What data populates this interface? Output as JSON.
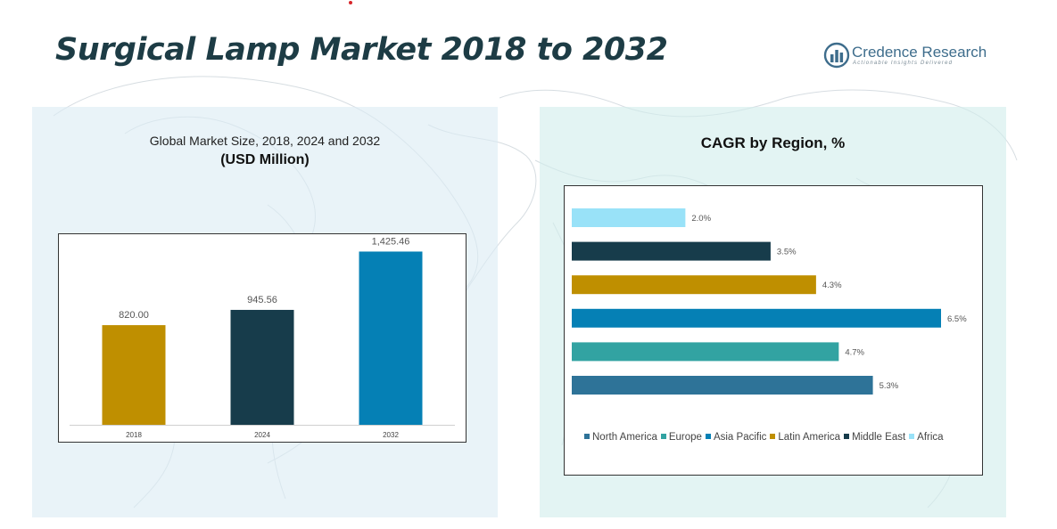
{
  "title": "Surgical Lamp Market 2018 to 2032",
  "logo": {
    "name": "Credence Research",
    "tagline": "Actionable Insights Delivered"
  },
  "colors": {
    "title": "#1d3c45",
    "gold": "#bf8f00",
    "dark_teal": "#173c4b",
    "blue": "#0580b5",
    "teal": "#32a3a2",
    "steel_blue": "#2e7398",
    "light_blue": "#99e2f8",
    "logo_blue": "#3e6d8c"
  },
  "chart_data": [
    {
      "type": "bar",
      "title": "Global Market Size, 2018, 2024 and 2032",
      "subtitle": "(USD Million)",
      "categories": [
        "2018",
        "2024",
        "2032"
      ],
      "values": [
        820.0,
        945.56,
        1425.46
      ],
      "value_labels": [
        "820.00",
        "945.56",
        "1,425.46"
      ],
      "colors": [
        "#bf8f00",
        "#173c4b",
        "#0580b5"
      ],
      "ylim": [
        0,
        1700
      ],
      "grid": false
    },
    {
      "type": "bar",
      "orientation": "horizontal",
      "title": "CAGR by Region, %",
      "categories": [
        "Africa",
        "Middle East",
        "Latin America",
        "Asia Pacific",
        "Europe",
        "North America"
      ],
      "values": [
        2.0,
        3.5,
        4.3,
        6.5,
        4.7,
        5.3
      ],
      "value_labels": [
        "2.0%",
        "3.5%",
        "4.3%",
        "6.5%",
        "4.7%",
        "5.3%"
      ],
      "colors": [
        "#99e2f8",
        "#173c4b",
        "#bf8f00",
        "#0580b5",
        "#32a3a2",
        "#2e7398"
      ],
      "xlim": [
        0,
        6.5
      ],
      "legend": {
        "position": "bottom",
        "entries": [
          {
            "name": "North America",
            "color": "#2e7398"
          },
          {
            "name": "Europe",
            "color": "#32a3a2"
          },
          {
            "name": "Asia Pacific",
            "color": "#0580b5"
          },
          {
            "name": "Latin America",
            "color": "#bf8f00"
          },
          {
            "name": "Middle East",
            "color": "#173c4b"
          },
          {
            "name": "Africa",
            "color": "#99e2f8"
          }
        ]
      },
      "grid": false
    }
  ]
}
